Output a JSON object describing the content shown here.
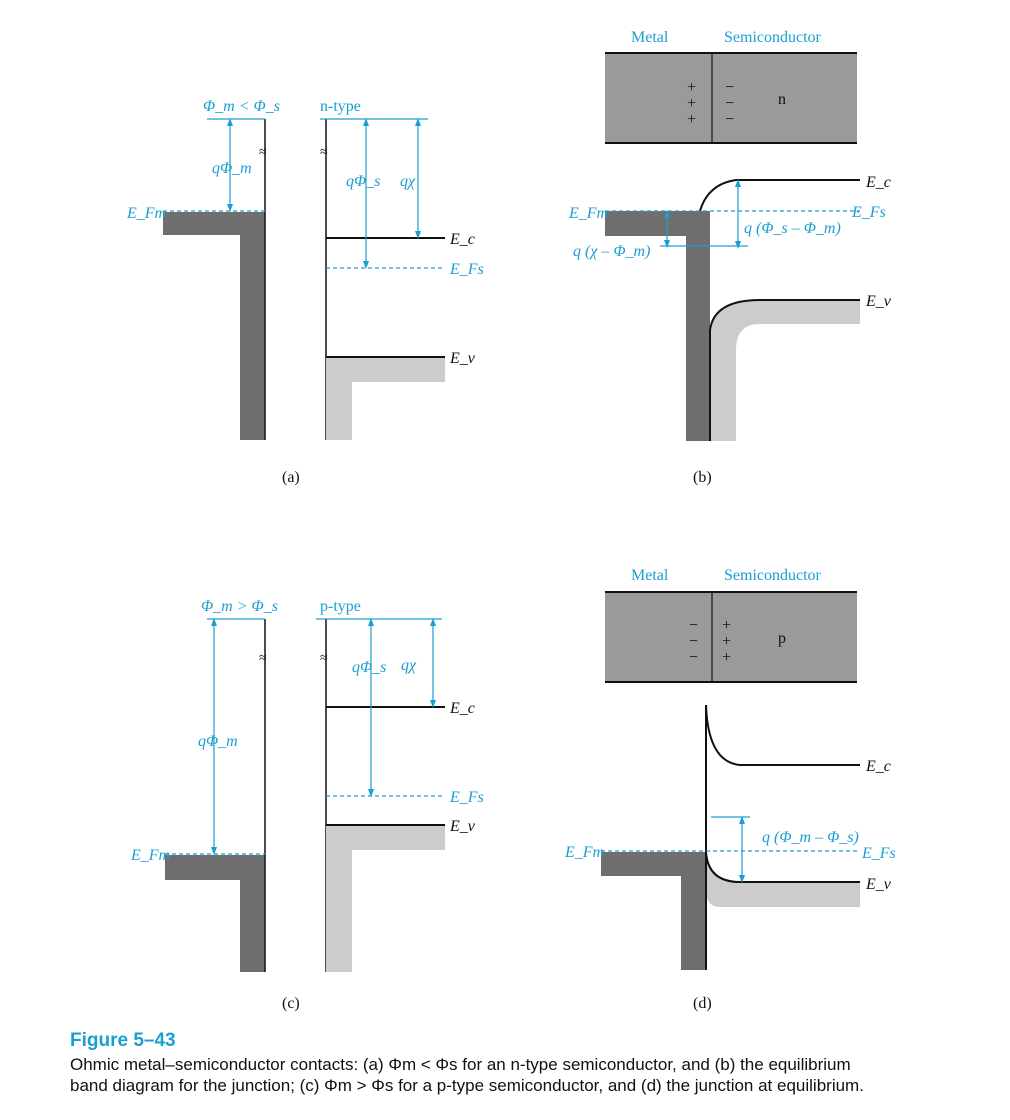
{
  "colors": {
    "accent": "#1a9fd0",
    "metal_dark": "#6e6e6e",
    "junction_box": "#9a9a9a",
    "valence_light": "#cccccc",
    "line": "#111111"
  },
  "panel_a": {
    "condition": "Φ_m < Φ_s",
    "semiconductor_type": "n-type",
    "q_phi_m": "qΦ_m",
    "q_phi_s": "qΦ_s",
    "q_chi": "qχ",
    "E_Fm": "E_Fm",
    "E_c": "E_c",
    "E_Fs": "E_Fs",
    "E_v": "E_v",
    "break_mark": "≈",
    "caption": "(a)"
  },
  "panel_b": {
    "metal": "Metal",
    "semiconductor": "Semiconductor",
    "plus_signs": [
      "+",
      "+",
      "+"
    ],
    "minus_signs": [
      "−",
      "−",
      "−"
    ],
    "type": "n",
    "E_c": "E_c",
    "E_Fm": "E_Fm",
    "E_Fs": "E_Fs",
    "E_v": "E_v",
    "q_phi_s_minus_phi_m": "q (Φ_s – Φ_m)",
    "q_chi_minus_phi_m": "q (χ – Φ_m)",
    "caption": "(b)"
  },
  "panel_c": {
    "condition": "Φ_m > Φ_s",
    "semiconductor_type": "p-type",
    "q_phi_m": "qΦ_m",
    "q_phi_s": "qΦ_s",
    "q_chi": "qχ",
    "E_Fm": "E_Fm",
    "E_c": "E_c",
    "E_Fs": "E_Fs",
    "E_v": "E_v",
    "break_mark": "≈",
    "caption": "(c)"
  },
  "panel_d": {
    "metal": "Metal",
    "semiconductor": "Semiconductor",
    "minus_signs": [
      "−",
      "−",
      "−"
    ],
    "plus_signs": [
      "+",
      "+",
      "+"
    ],
    "type": "p",
    "E_c": "E_c",
    "E_Fm": "E_Fm",
    "E_Fs": "E_Fs",
    "E_v": "E_v",
    "q_phi_m_minus_phi_s": "q (Φ_m – Φ_s)",
    "caption": "(d)"
  },
  "figure": {
    "title": "Figure 5–43",
    "caption_line1": "Ohmic metal–semiconductor contacts: (a) Φm < Φs for an n-type semiconductor, and (b) the equilibrium",
    "caption_line2": "band diagram for the junction; (c) Φm > Φs for a p-type semiconductor, and (d) the junction at equilibrium."
  }
}
